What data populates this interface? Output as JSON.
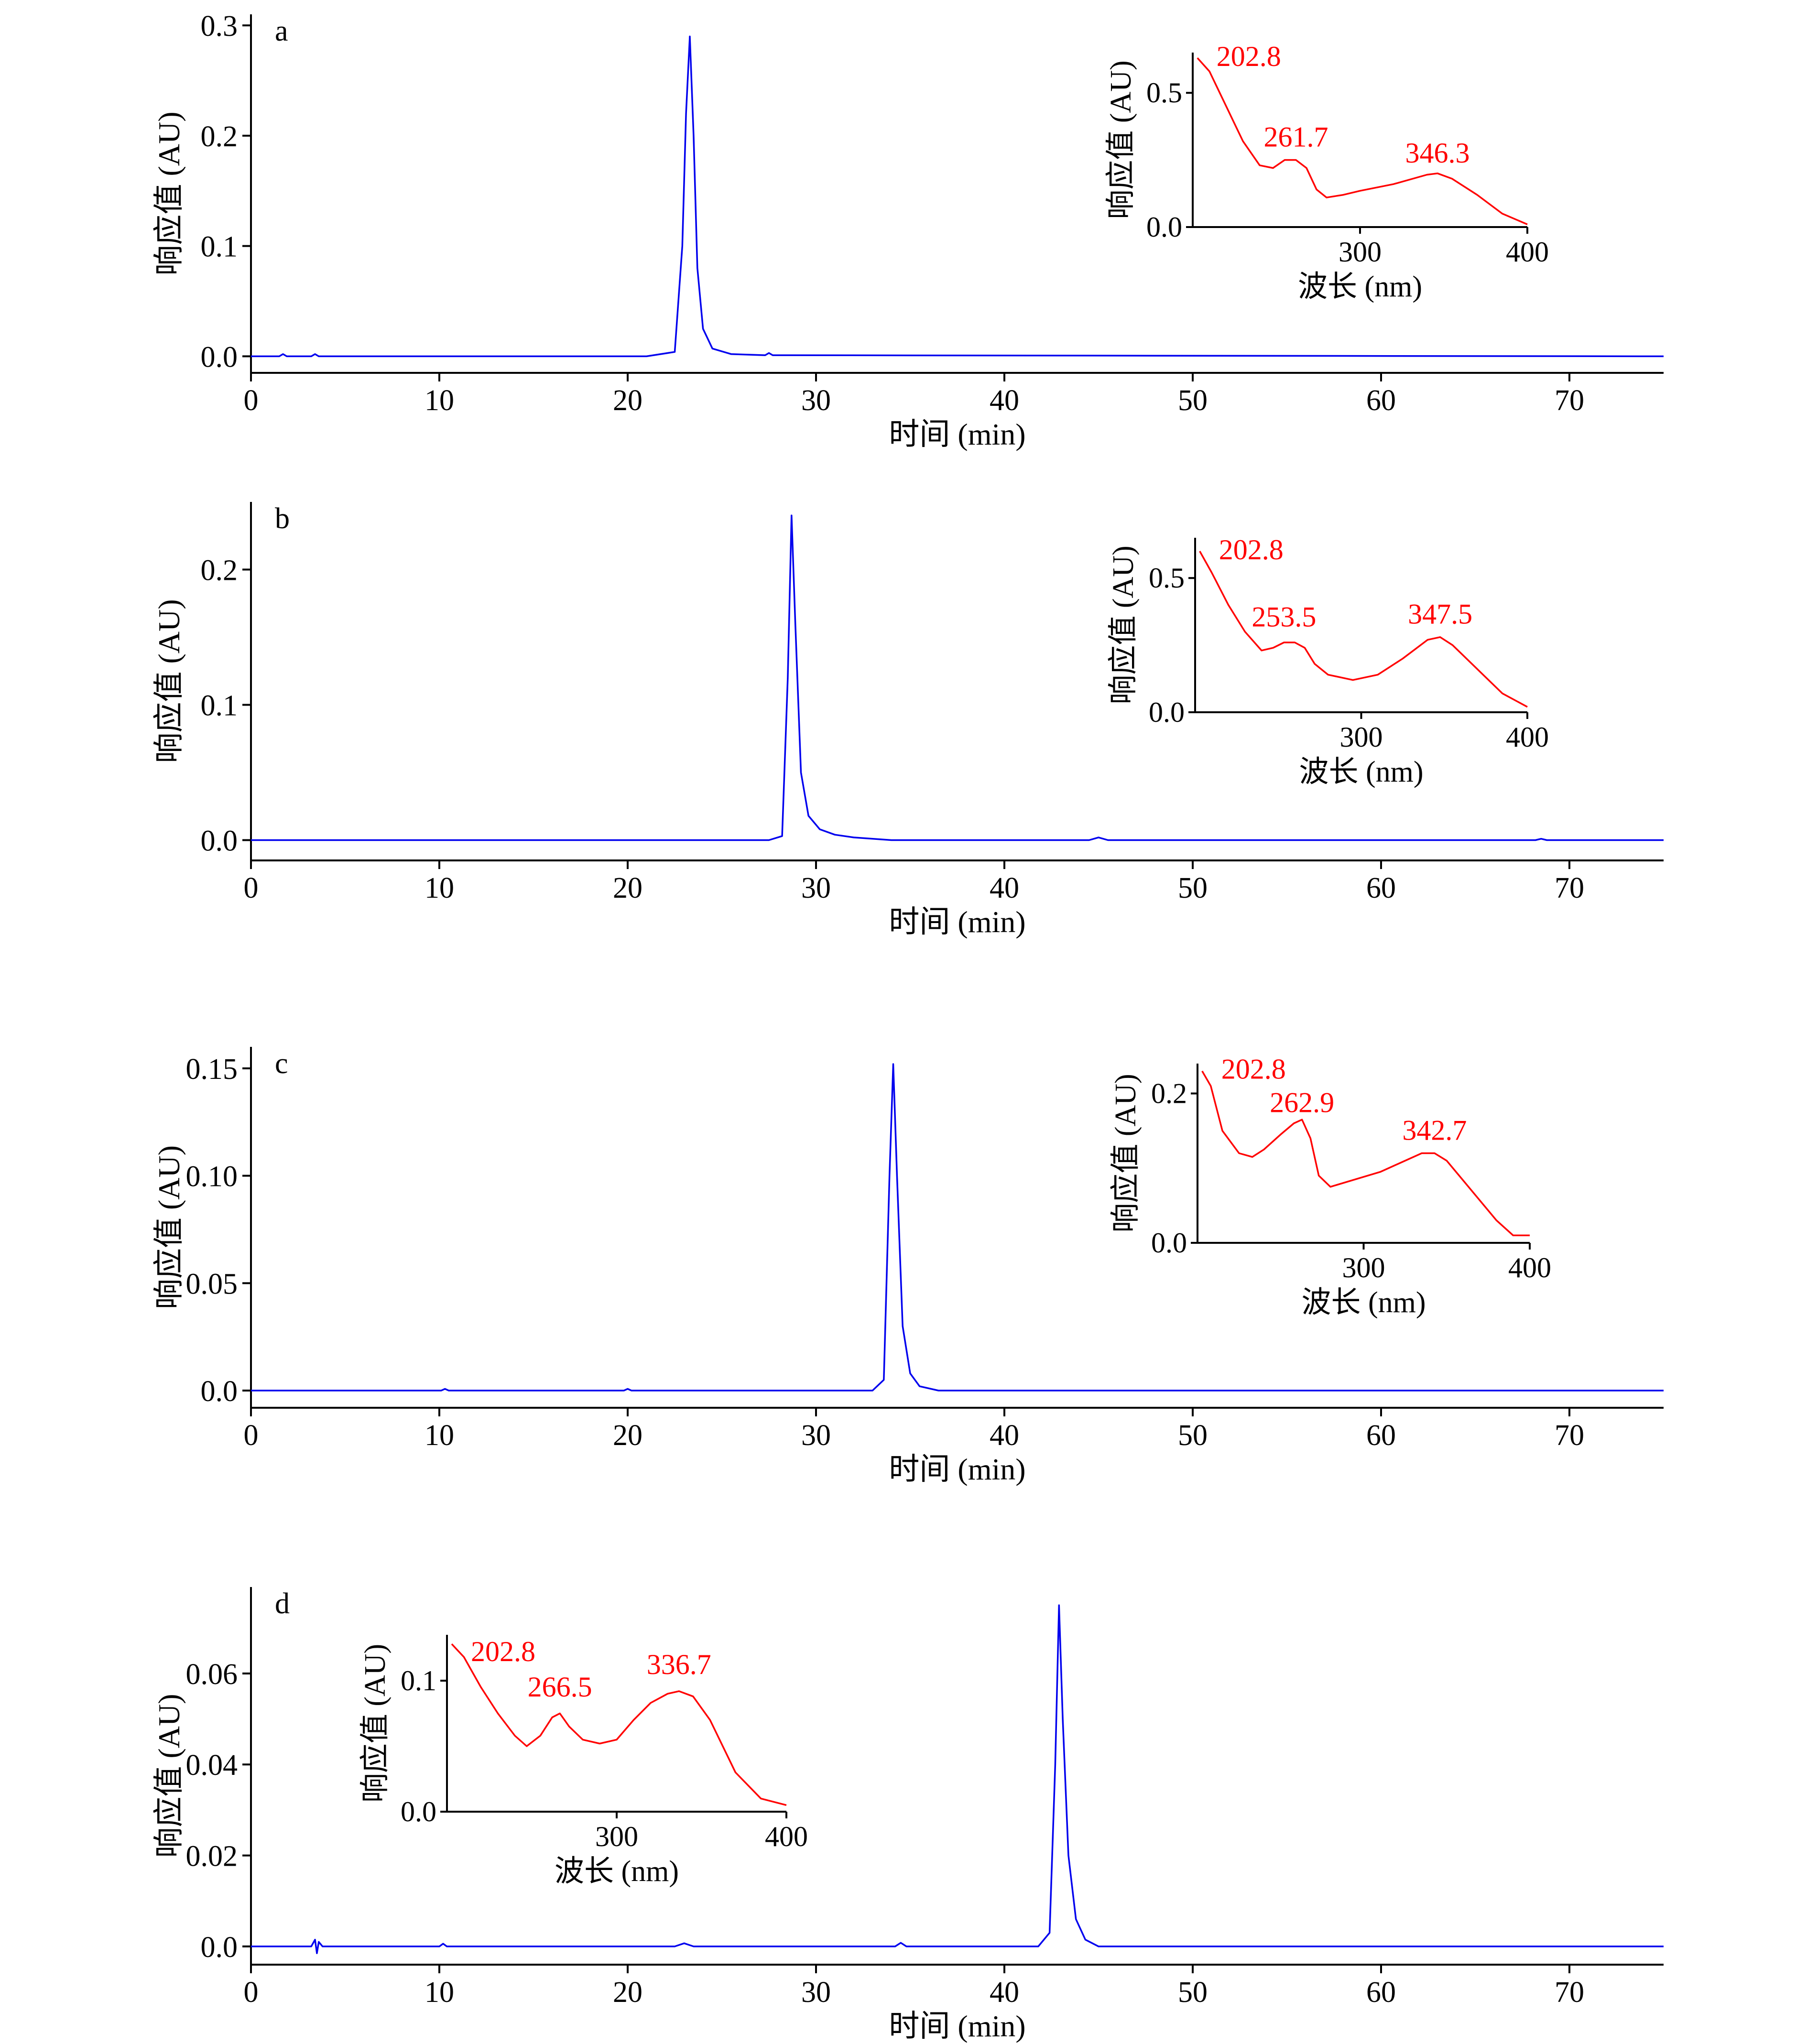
{
  "colors": {
    "main_trace": "#0000ee",
    "inset_trace": "#ff0000",
    "axis": "#000000"
  },
  "chart_data": [
    {
      "type": "line",
      "panel_label": "a",
      "xlabel": "时间 (min)",
      "ylabel": "响应值 (AU)",
      "xlim": [
        0,
        75
      ],
      "ylim": [
        -0.015,
        0.31
      ],
      "xticks": [
        0,
        10,
        20,
        30,
        40,
        50,
        60,
        70
      ],
      "x_tick_labels": [
        "0",
        "10",
        "20",
        "30",
        "40",
        "50",
        "60",
        "70"
      ],
      "yticks": [
        0.0,
        0.1,
        0.2,
        0.3
      ],
      "y_tick_labels": [
        "0.0",
        "0.1",
        "0.2",
        "0.3"
      ],
      "series": [
        {
          "x": [
            0,
            1.5,
            1.7,
            1.9,
            3.2,
            3.4,
            3.6,
            21.0,
            22.5,
            22.9,
            23.1,
            23.3,
            23.5,
            23.7,
            24.0,
            24.5,
            25.5,
            27.3,
            27.5,
            27.7,
            75
          ],
          "y": [
            0.0,
            0.0,
            0.002,
            0.0,
            0.0,
            0.002,
            0.0,
            0.0,
            0.004,
            0.1,
            0.22,
            0.29,
            0.2,
            0.08,
            0.025,
            0.007,
            0.002,
            0.001,
            0.003,
            0.001,
            0.0
          ]
        }
      ],
      "inset": {
        "xlabel": "波长 (nm)",
        "ylabel": "响应值 (AU)",
        "xlim": [
          200,
          400
        ],
        "ylim": [
          0,
          0.65
        ],
        "xticks": [
          300,
          400
        ],
        "x_tick_labels": [
          "300",
          "400"
        ],
        "yticks": [
          0.0,
          0.5
        ],
        "y_tick_labels": [
          "0.0",
          "0.5"
        ],
        "x": [
          202.8,
          210,
          220,
          230,
          240,
          248,
          255,
          261.7,
          268,
          274,
          280,
          290,
          300,
          320,
          340,
          346.3,
          355,
          370,
          385,
          400
        ],
        "y": [
          0.63,
          0.58,
          0.45,
          0.32,
          0.23,
          0.22,
          0.25,
          0.25,
          0.22,
          0.14,
          0.11,
          0.12,
          0.135,
          0.16,
          0.195,
          0.2,
          0.18,
          0.12,
          0.05,
          0.01
        ],
        "peak_labels": [
          {
            "x": 202.8,
            "y": 0.6,
            "text": "202.8"
          },
          {
            "x": 261.7,
            "y": 0.3,
            "text": "261.7"
          },
          {
            "x": 346.3,
            "y": 0.24,
            "text": "346.3"
          }
        ]
      }
    },
    {
      "type": "line",
      "panel_label": "b",
      "xlabel": "时间 (min)",
      "ylabel": "响应值 (AU)",
      "xlim": [
        0,
        75
      ],
      "ylim": [
        -0.015,
        0.25
      ],
      "xticks": [
        0,
        10,
        20,
        30,
        40,
        50,
        60,
        70
      ],
      "x_tick_labels": [
        "0",
        "10",
        "20",
        "30",
        "40",
        "50",
        "60",
        "70"
      ],
      "yticks": [
        0.0,
        0.1,
        0.2
      ],
      "y_tick_labels": [
        "0.0",
        "0.1",
        "0.2"
      ],
      "series": [
        {
          "x": [
            0,
            27.5,
            28.2,
            28.5,
            28.7,
            28.9,
            29.2,
            29.6,
            30.2,
            31.0,
            32.0,
            34.0,
            44.5,
            45.0,
            45.5,
            68.2,
            68.5,
            68.8,
            75
          ],
          "y": [
            0.0,
            0.0,
            0.003,
            0.12,
            0.24,
            0.16,
            0.05,
            0.018,
            0.008,
            0.004,
            0.002,
            0.0,
            0.0,
            0.002,
            0.0,
            0.0,
            0.001,
            0.0,
            0.0
          ]
        }
      ],
      "inset": {
        "xlabel": "波长 (nm)",
        "ylabel": "响应值 (AU)",
        "xlim": [
          200,
          400
        ],
        "ylim": [
          0,
          0.65
        ],
        "xticks": [
          300,
          400
        ],
        "x_tick_labels": [
          "300",
          "400"
        ],
        "yticks": [
          0.0,
          0.5
        ],
        "y_tick_labels": [
          "0.0",
          "0.5"
        ],
        "x": [
          202.8,
          210,
          220,
          230,
          240,
          247,
          253.5,
          260,
          266,
          272,
          280,
          295,
          310,
          325,
          340,
          347.5,
          355,
          370,
          385,
          400
        ],
        "y": [
          0.6,
          0.52,
          0.4,
          0.3,
          0.23,
          0.24,
          0.26,
          0.26,
          0.24,
          0.18,
          0.14,
          0.12,
          0.14,
          0.2,
          0.27,
          0.28,
          0.25,
          0.16,
          0.07,
          0.02
        ],
        "peak_labels": [
          {
            "x": 202.8,
            "y": 0.57,
            "text": "202.8"
          },
          {
            "x": 253.5,
            "y": 0.32,
            "text": "253.5"
          },
          {
            "x": 347.5,
            "y": 0.33,
            "text": "347.5"
          }
        ]
      }
    },
    {
      "type": "line",
      "panel_label": "c",
      "xlabel": "时间 (min)",
      "ylabel": "响应值 (AU)",
      "xlim": [
        0,
        75
      ],
      "ylim": [
        -0.008,
        0.16
      ],
      "xticks": [
        0,
        10,
        20,
        30,
        40,
        50,
        60,
        70
      ],
      "x_tick_labels": [
        "0",
        "10",
        "20",
        "30",
        "40",
        "50",
        "60",
        "70"
      ],
      "yticks": [
        0.0,
        0.05,
        0.1,
        0.15
      ],
      "y_tick_labels": [
        "0.0",
        "0.05",
        "0.10",
        "0.15"
      ],
      "series": [
        {
          "x": [
            0,
            10.1,
            10.3,
            10.5,
            19.8,
            20.0,
            20.2,
            33.0,
            33.6,
            33.9,
            34.1,
            34.3,
            34.6,
            35.0,
            35.5,
            36.5,
            75
          ],
          "y": [
            0.0,
            0.0,
            0.0008,
            0.0,
            0.0,
            0.0008,
            0.0,
            0.0,
            0.005,
            0.1,
            0.152,
            0.1,
            0.03,
            0.008,
            0.002,
            0.0,
            0.0
          ]
        }
      ],
      "inset": {
        "xlabel": "波长 (nm)",
        "ylabel": "响应值 (AU)",
        "xlim": [
          200,
          400
        ],
        "ylim": [
          0,
          0.24
        ],
        "xticks": [
          300,
          400
        ],
        "x_tick_labels": [
          "300",
          "400"
        ],
        "yticks": [
          0.0,
          0.2
        ],
        "y_tick_labels": [
          "0.0",
          "0.2"
        ],
        "x": [
          202.8,
          208,
          215,
          225,
          233,
          240,
          250,
          258,
          262.9,
          268,
          273,
          280,
          295,
          310,
          325,
          335,
          342.7,
          350,
          365,
          380,
          390,
          400
        ],
        "y": [
          0.23,
          0.21,
          0.15,
          0.12,
          0.115,
          0.125,
          0.145,
          0.16,
          0.165,
          0.14,
          0.09,
          0.075,
          0.085,
          0.095,
          0.11,
          0.12,
          0.12,
          0.11,
          0.07,
          0.03,
          0.01,
          0.01
        ],
        "peak_labels": [
          {
            "x": 202.8,
            "y": 0.22,
            "text": "202.8"
          },
          {
            "x": 262.9,
            "y": 0.175,
            "text": "262.9"
          },
          {
            "x": 342.7,
            "y": 0.138,
            "text": "342.7"
          }
        ]
      }
    },
    {
      "type": "line",
      "panel_label": "d",
      "xlabel": "时间 (min)",
      "ylabel": "响应值 (AU)",
      "xlim": [
        0,
        75
      ],
      "ylim": [
        -0.004,
        0.079
      ],
      "xticks": [
        0,
        10,
        20,
        30,
        40,
        50,
        60,
        70
      ],
      "x_tick_labels": [
        "0",
        "10",
        "20",
        "30",
        "40",
        "50",
        "60",
        "70"
      ],
      "yticks": [
        0.0,
        0.02,
        0.04,
        0.06
      ],
      "y_tick_labels": [
        "0.0",
        "0.02",
        "0.04",
        "0.06"
      ],
      "series": [
        {
          "x": [
            0,
            3.2,
            3.4,
            3.5,
            3.6,
            3.8,
            10.0,
            10.2,
            10.4,
            22.5,
            23.0,
            23.5,
            34.2,
            34.5,
            34.8,
            41.8,
            42.4,
            42.7,
            42.9,
            43.1,
            43.4,
            43.8,
            44.3,
            45.0,
            75
          ],
          "y": [
            0.0,
            0.0,
            0.0015,
            -0.0015,
            0.001,
            0.0,
            0.0,
            0.0006,
            0.0,
            0.0,
            0.0007,
            0.0,
            0.0,
            0.0008,
            0.0,
            0.0,
            0.003,
            0.04,
            0.075,
            0.05,
            0.02,
            0.006,
            0.0015,
            0.0,
            0.0
          ]
        }
      ],
      "inset": {
        "xlabel": "波长 (nm)",
        "ylabel": "响应值 (AU)",
        "xlim": [
          200,
          400
        ],
        "ylim": [
          0,
          0.135
        ],
        "xticks": [
          300,
          400
        ],
        "x_tick_labels": [
          "300",
          "400"
        ],
        "yticks": [
          0.0,
          0.1
        ],
        "y_tick_labels": [
          "0.0",
          "0.1"
        ],
        "x": [
          202.8,
          210,
          220,
          230,
          240,
          247,
          255,
          262,
          266.5,
          272,
          280,
          290,
          300,
          310,
          320,
          330,
          336.7,
          345,
          355,
          370,
          385,
          400
        ],
        "y": [
          0.128,
          0.118,
          0.095,
          0.075,
          0.058,
          0.05,
          0.058,
          0.072,
          0.075,
          0.065,
          0.055,
          0.052,
          0.055,
          0.07,
          0.083,
          0.09,
          0.092,
          0.088,
          0.07,
          0.03,
          0.01,
          0.005
        ],
        "peak_labels": [
          {
            "x": 202.8,
            "y": 0.115,
            "text": "202.8"
          },
          {
            "x": 266.5,
            "y": 0.088,
            "text": "266.5"
          },
          {
            "x": 336.7,
            "y": 0.105,
            "text": "336.7"
          }
        ]
      }
    }
  ]
}
